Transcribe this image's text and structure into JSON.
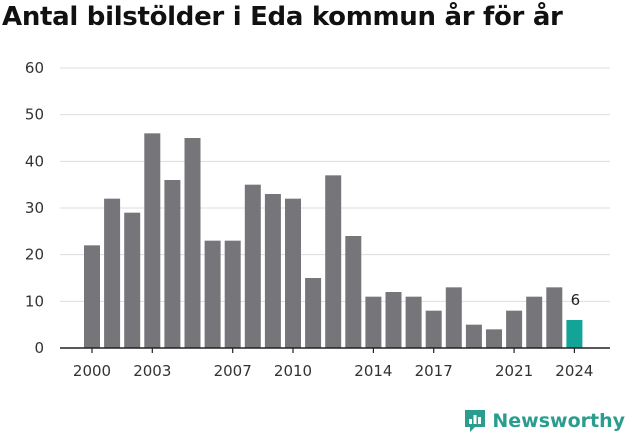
{
  "title": "Antal bilstölder i Eda kommun år för år",
  "brand": {
    "name": "Newsworthy",
    "icon": "newsworthy-logo-icon",
    "color": "#2a9d8f"
  },
  "colors": {
    "bar": "#76757a",
    "highlight": "#14a397",
    "grid": "#dddddd",
    "axis": "#222222"
  },
  "chart_data": {
    "type": "bar",
    "title": "Antal bilstölder i Eda kommun år för år",
    "xlabel": "",
    "ylabel": "",
    "categories": [
      "2000",
      "2001",
      "2002",
      "2003",
      "2004",
      "2005",
      "2006",
      "2007",
      "2008",
      "2009",
      "2010",
      "2011",
      "2012",
      "2013",
      "2014",
      "2015",
      "2016",
      "2017",
      "2018",
      "2019",
      "2020",
      "2021",
      "2022",
      "2023",
      "2024"
    ],
    "values": [
      22,
      32,
      29,
      46,
      36,
      45,
      23,
      23,
      35,
      33,
      32,
      15,
      37,
      24,
      11,
      12,
      11,
      8,
      13,
      5,
      4,
      8,
      11,
      13,
      6
    ],
    "x_tick_labels": [
      "2000",
      "2003",
      "2007",
      "2010",
      "2014",
      "2017",
      "2021",
      "2024"
    ],
    "y_ticks": [
      0,
      10,
      20,
      30,
      40,
      50,
      60
    ],
    "ylim": [
      0,
      60
    ],
    "grid": true,
    "highlight": {
      "category": "2024",
      "label": "6"
    }
  }
}
